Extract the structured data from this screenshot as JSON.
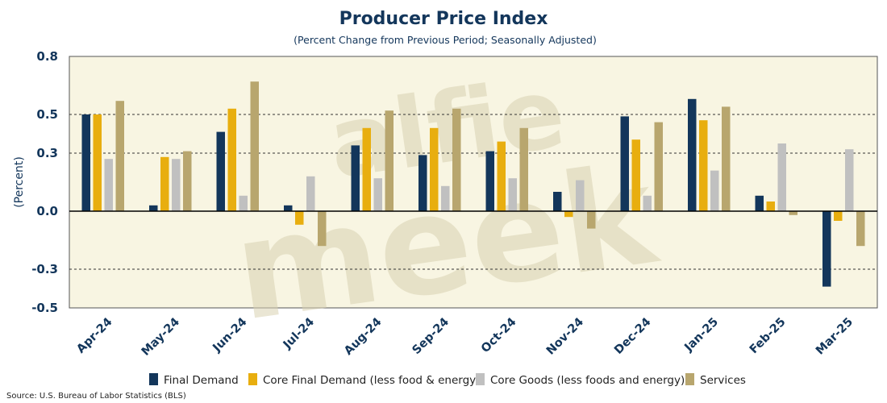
{
  "chart_data": {
    "type": "bar",
    "title": "Producer Price Index",
    "subtitle": "(Percent Change from Previous Period; Seasonally Adjusted)",
    "ylabel": "(Percent)",
    "xlabel": "",
    "ylim": [
      -0.5,
      0.8
    ],
    "yticks": [
      0.8,
      0.5,
      0.3,
      0.0,
      -0.3,
      -0.5
    ],
    "ytick_labels": [
      "0.8",
      "0.5",
      "0.3",
      "0.0",
      "-0.3",
      "-0.5"
    ],
    "grid": "horizontal dashed",
    "legend_position": "bottom",
    "categories": [
      "Apr-24",
      "May-24",
      "Jun-24",
      "Jul-24",
      "Aug-24",
      "Sep-24",
      "Oct-24",
      "Nov-24",
      "Dec-24",
      "Jan-25",
      "Feb-25",
      "Mar-25"
    ],
    "series": [
      {
        "name": "Final Demand",
        "color": "#13365b",
        "values": [
          0.5,
          0.03,
          0.41,
          0.03,
          0.34,
          0.29,
          0.31,
          0.1,
          0.49,
          0.58,
          0.08,
          -0.39
        ]
      },
      {
        "name": "Core Final Demand (less food & energy)",
        "color": "#e8ae0f",
        "values": [
          0.5,
          0.28,
          0.53,
          -0.07,
          0.43,
          0.43,
          0.36,
          -0.03,
          0.37,
          0.47,
          0.05,
          -0.05
        ]
      },
      {
        "name": "Core Goods (less foods and energy)",
        "color": "#c0c0c0",
        "values": [
          0.27,
          0.27,
          0.08,
          0.18,
          0.17,
          0.13,
          0.17,
          0.16,
          0.08,
          0.21,
          0.35,
          0.32
        ]
      },
      {
        "name": "Services",
        "color": "#b8a66e",
        "values": [
          0.57,
          0.31,
          0.67,
          -0.18,
          0.52,
          0.53,
          0.43,
          -0.09,
          0.46,
          0.54,
          -0.02,
          -0.18
        ]
      }
    ]
  },
  "watermark": "alfie meek",
  "source": "Source: U.S. Bureau of Labor Statistics (BLS)",
  "colors": {
    "plot_background": "#f8f5e2",
    "text": "#13365b"
  }
}
